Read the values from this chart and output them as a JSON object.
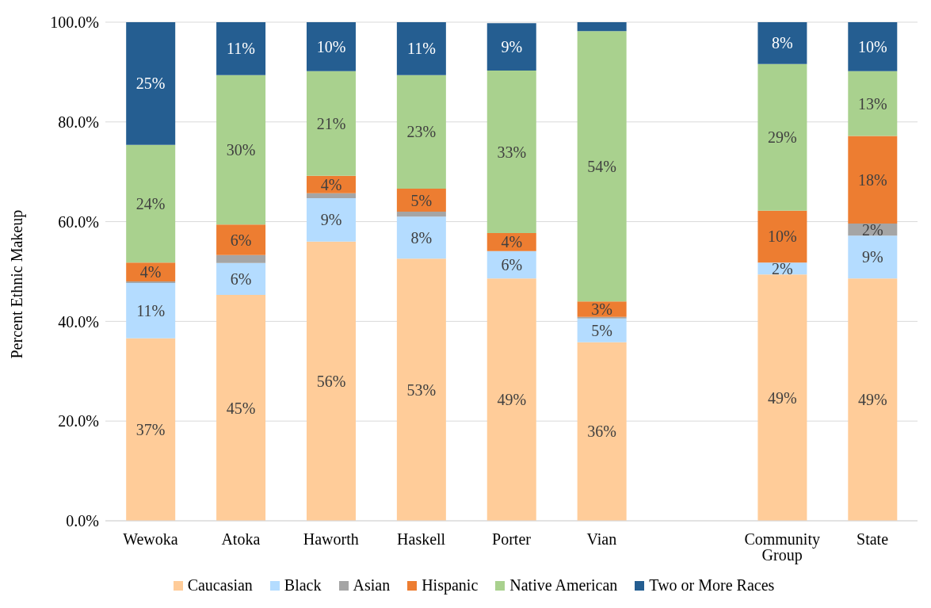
{
  "chart_data": {
    "type": "bar",
    "stacked": true,
    "ylabel": "Percent Ethnic Makeup",
    "categories": [
      "Wewoka",
      "Atoka",
      "Haworth",
      "Haskell",
      "Porter",
      "Vian",
      null,
      "Community Group",
      "State"
    ],
    "series": [
      {
        "name": "Caucasian",
        "color": "#ffcc99",
        "values": [
          36.6,
          45.3,
          56.0,
          52.6,
          48.6,
          35.8,
          null,
          49.4,
          48.6
        ],
        "value_labels": [
          "37%",
          "45%",
          "56%",
          "53%",
          "49%",
          "36%",
          null,
          "49%",
          "49%"
        ]
      },
      {
        "name": "Black",
        "color": "#b4dcff",
        "values": [
          11.1,
          6.4,
          8.7,
          8.4,
          5.5,
          4.8,
          null,
          2.4,
          8.6
        ],
        "value_labels": [
          "11%",
          "6%",
          "9%",
          "8%",
          "6%",
          "5%",
          null,
          "2%",
          "9%"
        ]
      },
      {
        "name": "Asian",
        "color": "#a5a5a5",
        "values": [
          0.3,
          1.6,
          1.0,
          1.0,
          null,
          0.3,
          null,
          null,
          2.4
        ],
        "value_labels": [
          null,
          null,
          null,
          null,
          null,
          null,
          null,
          null,
          "2%"
        ]
      },
      {
        "name": "Hispanic",
        "color": "#ed7d31",
        "values": [
          3.8,
          6.1,
          3.5,
          4.6,
          3.6,
          3.1,
          null,
          10.4,
          17.6
        ],
        "value_labels": [
          "4%",
          "6%",
          "4%",
          "5%",
          "4%",
          "3%",
          null,
          "10%",
          "18%"
        ]
      },
      {
        "name": "Native American",
        "color": "#a9d18e",
        "values": [
          23.6,
          30.0,
          21.0,
          22.8,
          32.6,
          54.2,
          null,
          29.4,
          13.0
        ],
        "value_labels": [
          "24%",
          "30%",
          "21%",
          "23%",
          "33%",
          "54%",
          null,
          "29%",
          "13%"
        ]
      },
      {
        "name": "Two or More Races",
        "color": "#255e91",
        "values": [
          24.6,
          10.6,
          9.8,
          10.6,
          9.5,
          1.8,
          null,
          8.4,
          9.8
        ],
        "value_labels": [
          "25%",
          "11%",
          "10%",
          "11%",
          "9%",
          null,
          null,
          "8%",
          "10%"
        ]
      }
    ],
    "ylim": [
      0,
      100
    ],
    "yticks": [
      {
        "value": 0,
        "label": "0.0%"
      },
      {
        "value": 20,
        "label": "20.0%"
      },
      {
        "value": 40,
        "label": "40.0%"
      },
      {
        "value": 60,
        "label": "60.0%"
      },
      {
        "value": 80,
        "label": "80.0%"
      },
      {
        "value": 100,
        "label": "100.0%"
      }
    ],
    "grid": "y",
    "legend": "bottom"
  }
}
